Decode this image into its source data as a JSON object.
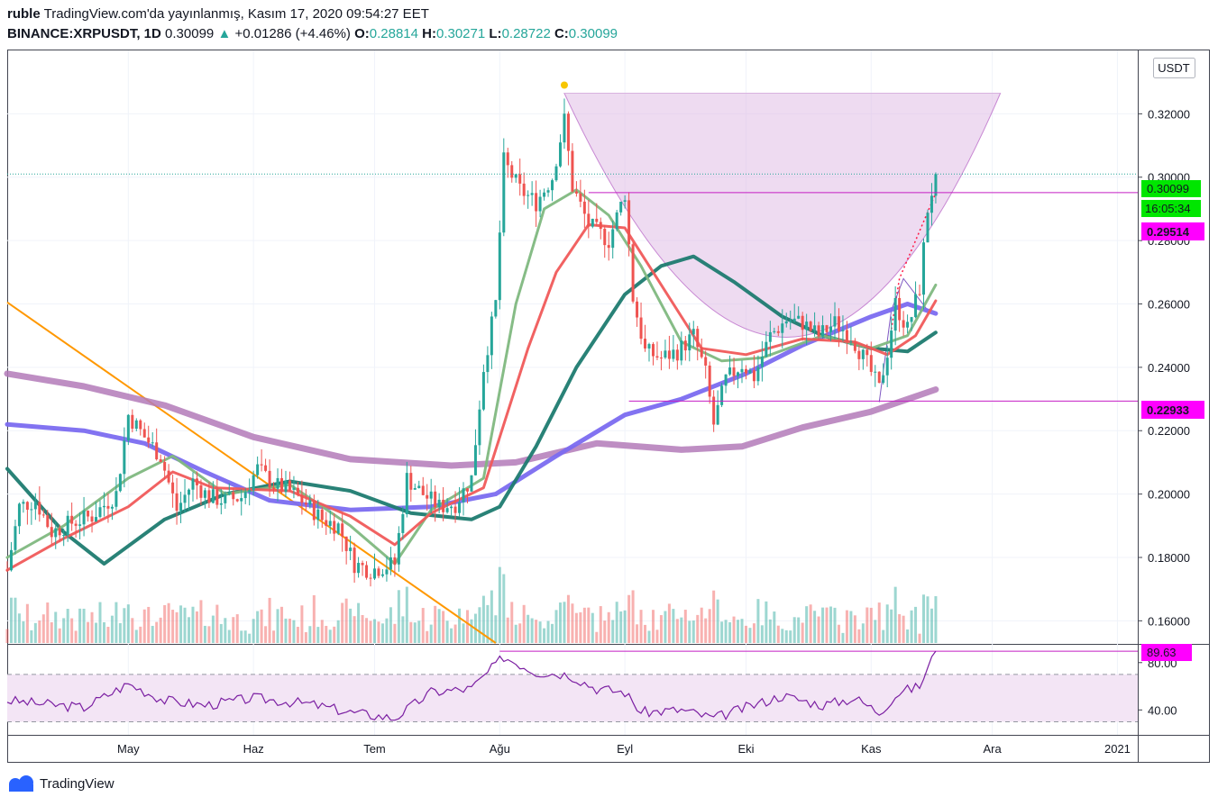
{
  "header": {
    "author": "ruble",
    "published": "TradingView.com'da yayınlanmış, Kasım 17, 2020 09:54:27 EET",
    "symbol": "BINANCE:XRPUSDT, 1D",
    "last": "0.30099",
    "change_arrow": "▲",
    "change": "+0.01286 (+4.46%)",
    "o_label": "O:",
    "o": "0.28814",
    "h_label": "H:",
    "h": "0.30271",
    "l_label": "L:",
    "l": "0.28722",
    "c_label": "C:",
    "c": "0.30099"
  },
  "footer": {
    "brand": "TradingView",
    "logo_icon": "tradingview-logo-icon"
  },
  "currency_button": "USDT",
  "price_labels": {
    "current": "0.30099",
    "countdown": "16:05:34",
    "level_high": "0.29514",
    "level_low": "0.22933",
    "rsi_value": "89.63"
  },
  "colors": {
    "up": "#26a69a",
    "down": "#ef5350",
    "sma_fast": "#7fb87f",
    "sma_red": "#f05a5a",
    "sma_teal": "#1e7b70",
    "sma_blue": "#7b6cf0",
    "sma_purple": "#b37ab8",
    "trendline": "#ff9800",
    "pattern": "#9c27b0",
    "rsi": "#7b1fa2",
    "label_green": "#00e600",
    "label_magenta": "#ff00ff"
  },
  "chart_data": [
    {
      "type": "candlestick",
      "title": "BINANCE:XRPUSDT, 1D",
      "y_ticks": [
        "0.32000",
        "0.30000",
        "0.28000",
        "0.26000",
        "0.24000",
        "0.22000",
        "0.20000",
        "0.18000",
        "0.16000"
      ],
      "x_ticks": [
        "May",
        "Haz",
        "Tem",
        "Ağu",
        "Eyl",
        "Eki",
        "Kas",
        "Ara",
        "2021"
      ],
      "ylim": [
        0.153,
        0.34
      ],
      "close_path": [
        {
          "date": "2020-04-01",
          "close": 0.176
        },
        {
          "date": "2020-04-04",
          "close": 0.196
        },
        {
          "date": "2020-04-08",
          "close": 0.198
        },
        {
          "date": "2020-04-12",
          "close": 0.188
        },
        {
          "date": "2020-04-17",
          "close": 0.191
        },
        {
          "date": "2020-04-22",
          "close": 0.193
        },
        {
          "date": "2020-04-28",
          "close": 0.2
        },
        {
          "date": "2020-05-01",
          "close": 0.225
        },
        {
          "date": "2020-05-05",
          "close": 0.218
        },
        {
          "date": "2020-05-09",
          "close": 0.212
        },
        {
          "date": "2020-05-13",
          "close": 0.195
        },
        {
          "date": "2020-05-17",
          "close": 0.204
        },
        {
          "date": "2020-05-21",
          "close": 0.199
        },
        {
          "date": "2020-05-25",
          "close": 0.198
        },
        {
          "date": "2020-05-29",
          "close": 0.199
        },
        {
          "date": "2020-06-02",
          "close": 0.208
        },
        {
          "date": "2020-06-06",
          "close": 0.203
        },
        {
          "date": "2020-06-10",
          "close": 0.201
        },
        {
          "date": "2020-06-14",
          "close": 0.197
        },
        {
          "date": "2020-06-18",
          "close": 0.192
        },
        {
          "date": "2020-06-22",
          "close": 0.19
        },
        {
          "date": "2020-06-26",
          "close": 0.178
        },
        {
          "date": "2020-06-30",
          "close": 0.176
        },
        {
          "date": "2020-07-06",
          "close": 0.178
        },
        {
          "date": "2020-07-09",
          "close": 0.205
        },
        {
          "date": "2020-07-13",
          "close": 0.2
        },
        {
          "date": "2020-07-17",
          "close": 0.196
        },
        {
          "date": "2020-07-21",
          "close": 0.197
        },
        {
          "date": "2020-07-25",
          "close": 0.205
        },
        {
          "date": "2020-07-28",
          "close": 0.24
        },
        {
          "date": "2020-07-31",
          "close": 0.26
        },
        {
          "date": "2020-08-02",
          "close": 0.305
        },
        {
          "date": "2020-08-06",
          "close": 0.296
        },
        {
          "date": "2020-08-10",
          "close": 0.292
        },
        {
          "date": "2020-08-14",
          "close": 0.3
        },
        {
          "date": "2020-08-17",
          "close": 0.318
        },
        {
          "date": "2020-08-19",
          "close": 0.297
        },
        {
          "date": "2020-08-23",
          "close": 0.285
        },
        {
          "date": "2020-08-28",
          "close": 0.28
        },
        {
          "date": "2020-09-01",
          "close": 0.295
        },
        {
          "date": "2020-09-03",
          "close": 0.262
        },
        {
          "date": "2020-09-06",
          "close": 0.245
        },
        {
          "date": "2020-09-10",
          "close": 0.243
        },
        {
          "date": "2020-09-14",
          "close": 0.245
        },
        {
          "date": "2020-09-18",
          "close": 0.25
        },
        {
          "date": "2020-09-21",
          "close": 0.238
        },
        {
          "date": "2020-09-23",
          "close": 0.222
        },
        {
          "date": "2020-09-26",
          "close": 0.236
        },
        {
          "date": "2020-09-30",
          "close": 0.241
        },
        {
          "date": "2020-10-03",
          "close": 0.237
        },
        {
          "date": "2020-10-07",
          "close": 0.25
        },
        {
          "date": "2020-10-11",
          "close": 0.255
        },
        {
          "date": "2020-10-15",
          "close": 0.254
        },
        {
          "date": "2020-10-19",
          "close": 0.25
        },
        {
          "date": "2020-10-23",
          "close": 0.254
        },
        {
          "date": "2020-10-27",
          "close": 0.25
        },
        {
          "date": "2020-10-31",
          "close": 0.241
        },
        {
          "date": "2020-11-03",
          "close": 0.233
        },
        {
          "date": "2020-11-05",
          "close": 0.245
        },
        {
          "date": "2020-11-07",
          "close": 0.26
        },
        {
          "date": "2020-11-10",
          "close": 0.252
        },
        {
          "date": "2020-11-13",
          "close": 0.265
        },
        {
          "date": "2020-11-15",
          "close": 0.29
        },
        {
          "date": "2020-11-17",
          "close": 0.30099
        }
      ],
      "moving_averages": [
        {
          "color": "#7fb87f",
          "points": [
            {
              "date": "2020-04-01",
              "value": 0.18
            },
            {
              "date": "2020-04-15",
              "value": 0.19
            },
            {
              "date": "2020-05-01",
              "value": 0.205
            },
            {
              "date": "2020-05-12",
              "value": 0.212
            },
            {
              "date": "2020-05-25",
              "value": 0.2
            },
            {
              "date": "2020-06-10",
              "value": 0.203
            },
            {
              "date": "2020-06-25",
              "value": 0.19
            },
            {
              "date": "2020-07-06",
              "value": 0.178
            },
            {
              "date": "2020-07-15",
              "value": 0.195
            },
            {
              "date": "2020-07-28",
              "value": 0.205
            },
            {
              "date": "2020-08-05",
              "value": 0.26
            },
            {
              "date": "2020-08-12",
              "value": 0.29
            },
            {
              "date": "2020-08-20",
              "value": 0.296
            },
            {
              "date": "2020-08-28",
              "value": 0.288
            },
            {
              "date": "2020-09-05",
              "value": 0.272
            },
            {
              "date": "2020-09-15",
              "value": 0.248
            },
            {
              "date": "2020-09-25",
              "value": 0.242
            },
            {
              "date": "2020-10-05",
              "value": 0.243
            },
            {
              "date": "2020-10-20",
              "value": 0.25
            },
            {
              "date": "2020-11-01",
              "value": 0.246
            },
            {
              "date": "2020-11-10",
              "value": 0.25
            },
            {
              "date": "2020-11-17",
              "value": 0.266
            }
          ]
        },
        {
          "color": "#f05a5a",
          "points": [
            {
              "date": "2020-04-01",
              "value": 0.176
            },
            {
              "date": "2020-04-15",
              "value": 0.186
            },
            {
              "date": "2020-05-01",
              "value": 0.196
            },
            {
              "date": "2020-05-12",
              "value": 0.207
            },
            {
              "date": "2020-05-22",
              "value": 0.202
            },
            {
              "date": "2020-06-10",
              "value": 0.201
            },
            {
              "date": "2020-06-25",
              "value": 0.193
            },
            {
              "date": "2020-07-06",
              "value": 0.184
            },
            {
              "date": "2020-07-15",
              "value": 0.194
            },
            {
              "date": "2020-07-28",
              "value": 0.202
            },
            {
              "date": "2020-08-08",
              "value": 0.246
            },
            {
              "date": "2020-08-15",
              "value": 0.27
            },
            {
              "date": "2020-08-23",
              "value": 0.285
            },
            {
              "date": "2020-09-01",
              "value": 0.284
            },
            {
              "date": "2020-09-08",
              "value": 0.27
            },
            {
              "date": "2020-09-20",
              "value": 0.246
            },
            {
              "date": "2020-10-01",
              "value": 0.244
            },
            {
              "date": "2020-10-15",
              "value": 0.249
            },
            {
              "date": "2020-10-28",
              "value": 0.248
            },
            {
              "date": "2020-11-05",
              "value": 0.244
            },
            {
              "date": "2020-11-12",
              "value": 0.25
            },
            {
              "date": "2020-11-17",
              "value": 0.261
            }
          ]
        },
        {
          "color": "#1e7b70",
          "points": [
            {
              "date": "2020-04-01",
              "value": 0.208
            },
            {
              "date": "2020-04-15",
              "value": 0.188
            },
            {
              "date": "2020-04-25",
              "value": 0.178
            },
            {
              "date": "2020-05-10",
              "value": 0.192
            },
            {
              "date": "2020-05-25",
              "value": 0.2
            },
            {
              "date": "2020-06-10",
              "value": 0.204
            },
            {
              "date": "2020-06-25",
              "value": 0.201
            },
            {
              "date": "2020-07-10",
              "value": 0.194
            },
            {
              "date": "2020-07-25",
              "value": 0.192
            },
            {
              "date": "2020-08-01",
              "value": 0.196
            },
            {
              "date": "2020-08-10",
              "value": 0.215
            },
            {
              "date": "2020-08-20",
              "value": 0.24
            },
            {
              "date": "2020-09-01",
              "value": 0.263
            },
            {
              "date": "2020-09-10",
              "value": 0.272
            },
            {
              "date": "2020-09-18",
              "value": 0.275
            },
            {
              "date": "2020-09-28",
              "value": 0.267
            },
            {
              "date": "2020-10-10",
              "value": 0.256
            },
            {
              "date": "2020-10-20",
              "value": 0.25
            },
            {
              "date": "2020-11-01",
              "value": 0.246
            },
            {
              "date": "2020-11-10",
              "value": 0.245
            },
            {
              "date": "2020-11-17",
              "value": 0.251
            }
          ]
        },
        {
          "color": "#7b6cf0",
          "points": [
            {
              "date": "2020-04-01",
              "value": 0.222
            },
            {
              "date": "2020-04-20",
              "value": 0.22
            },
            {
              "date": "2020-05-05",
              "value": 0.216
            },
            {
              "date": "2020-05-20",
              "value": 0.207
            },
            {
              "date": "2020-06-05",
              "value": 0.198
            },
            {
              "date": "2020-06-25",
              "value": 0.195
            },
            {
              "date": "2020-07-15",
              "value": 0.196
            },
            {
              "date": "2020-07-31",
              "value": 0.2
            },
            {
              "date": "2020-08-15",
              "value": 0.212
            },
            {
              "date": "2020-09-01",
              "value": 0.225
            },
            {
              "date": "2020-09-15",
              "value": 0.23
            },
            {
              "date": "2020-10-01",
              "value": 0.238
            },
            {
              "date": "2020-10-15",
              "value": 0.247
            },
            {
              "date": "2020-11-01",
              "value": 0.256
            },
            {
              "date": "2020-11-10",
              "value": 0.26
            },
            {
              "date": "2020-11-17",
              "value": 0.257
            }
          ]
        },
        {
          "color": "#b37ab8",
          "points": [
            {
              "date": "2020-04-01",
              "value": 0.238
            },
            {
              "date": "2020-04-20",
              "value": 0.234
            },
            {
              "date": "2020-05-10",
              "value": 0.228
            },
            {
              "date": "2020-06-01",
              "value": 0.218
            },
            {
              "date": "2020-06-25",
              "value": 0.211
            },
            {
              "date": "2020-07-20",
              "value": 0.209
            },
            {
              "date": "2020-08-05",
              "value": 0.21
            },
            {
              "date": "2020-08-25",
              "value": 0.216
            },
            {
              "date": "2020-09-15",
              "value": 0.214
            },
            {
              "date": "2020-09-30",
              "value": 0.215
            },
            {
              "date": "2020-10-15",
              "value": 0.221
            },
            {
              "date": "2020-11-01",
              "value": 0.226
            },
            {
              "date": "2020-11-17",
              "value": 0.233
            }
          ]
        }
      ],
      "horizontal_levels": [
        0.29514,
        0.22933
      ],
      "current_price": 0.30099
    },
    {
      "type": "line",
      "title": "RSI",
      "y_ticks": [
        "80.00",
        "40.00"
      ],
      "bands": [
        70,
        30
      ],
      "ylim": [
        22,
        92
      ],
      "points": [
        {
          "date": "2020-04-01",
          "value": 48
        },
        {
          "date": "2020-04-10",
          "value": 45
        },
        {
          "date": "2020-04-20",
          "value": 42
        },
        {
          "date": "2020-05-01",
          "value": 62
        },
        {
          "date": "2020-05-10",
          "value": 48
        },
        {
          "date": "2020-05-20",
          "value": 44
        },
        {
          "date": "2020-06-01",
          "value": 50
        },
        {
          "date": "2020-06-15",
          "value": 45
        },
        {
          "date": "2020-06-25",
          "value": 38
        },
        {
          "date": "2020-07-06",
          "value": 33
        },
        {
          "date": "2020-07-15",
          "value": 55
        },
        {
          "date": "2020-07-25",
          "value": 58
        },
        {
          "date": "2020-08-02",
          "value": 85
        },
        {
          "date": "2020-08-10",
          "value": 72
        },
        {
          "date": "2020-08-18",
          "value": 70
        },
        {
          "date": "2020-08-25",
          "value": 58
        },
        {
          "date": "2020-09-01",
          "value": 55
        },
        {
          "date": "2020-09-05",
          "value": 38
        },
        {
          "date": "2020-09-15",
          "value": 40
        },
        {
          "date": "2020-09-23",
          "value": 33
        },
        {
          "date": "2020-10-01",
          "value": 42
        },
        {
          "date": "2020-10-10",
          "value": 52
        },
        {
          "date": "2020-10-20",
          "value": 44
        },
        {
          "date": "2020-10-28",
          "value": 50
        },
        {
          "date": "2020-11-03",
          "value": 38
        },
        {
          "date": "2020-11-08",
          "value": 55
        },
        {
          "date": "2020-11-13",
          "value": 60
        },
        {
          "date": "2020-11-17",
          "value": 89.63
        }
      ]
    }
  ]
}
